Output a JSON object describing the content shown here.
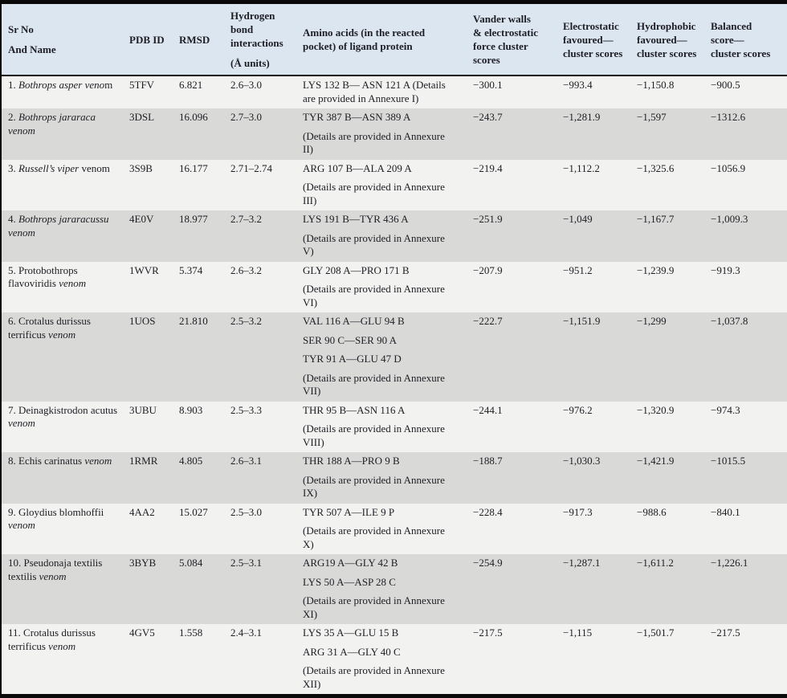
{
  "colors": {
    "header_bg": "#dce6f1",
    "row_light": "#f2f2f1",
    "row_dark": "#d9d9d8",
    "border": "#0a0a0a",
    "text": "#1e1e24"
  },
  "table": {
    "header": [
      {
        "id": "srno-name",
        "paras": [
          "Sr No",
          "And Name"
        ]
      },
      {
        "id": "pdb-id",
        "paras": [
          "PDB ID"
        ]
      },
      {
        "id": "rmsd",
        "paras": [
          "RMSD"
        ]
      },
      {
        "id": "hbond",
        "paras": [
          "Hydrogen\nbond\ninteractions",
          "(Å units)"
        ]
      },
      {
        "id": "amino-acids",
        "paras": [
          "Amino acids (in the reacted\npocket) of ligand protein"
        ]
      },
      {
        "id": "vdw",
        "paras": [
          "Vander walls\n& electrostatic\nforce cluster\nscores"
        ]
      },
      {
        "id": "electrostatic",
        "paras": [
          "Electrostatic\nfavoured—\ncluster scores"
        ]
      },
      {
        "id": "hydrophobic",
        "paras": [
          "Hydrophobic\nfavoured—\ncluster scores"
        ]
      },
      {
        "id": "balanced",
        "paras": [
          "Balanced\nscore—\ncluster scores"
        ]
      }
    ],
    "rows": [
      {
        "name": [
          {
            "t": "1. ",
            "i": false
          },
          {
            "t": "Bothrops asper veno",
            "i": true
          },
          {
            "t": "m",
            "i": false
          }
        ],
        "pdb": "5TFV",
        "rmsd": "6.821",
        "hbond": "2.6–3.0",
        "amino": [
          "LYS 132 B— ASN 121 A (Details\nare provided in Annexure I)"
        ],
        "vdw": "−300.1",
        "electro": "−993.4",
        "hydro": "−1,150.8",
        "balanced": "−900.5"
      },
      {
        "name": [
          {
            "t": "2. ",
            "i": false
          },
          {
            "t": "Bothrops jararaca\nvenom",
            "i": true
          }
        ],
        "pdb": "3DSL",
        "rmsd": "16.096",
        "hbond": "2.7–3.0",
        "amino": [
          "TYR 387 B—ASN 389 A",
          "(Details are provided in Annexure\nII)"
        ],
        "vdw": "−243.7",
        "electro": "−1,281.9",
        "hydro": "−1,597",
        "balanced": "−1312.6"
      },
      {
        "name": [
          {
            "t": "3. ",
            "i": false
          },
          {
            "t": "Russell’s viper",
            "i": true
          },
          {
            "t": " venom",
            "i": false
          }
        ],
        "pdb": "3S9B",
        "rmsd": "16.177",
        "hbond": "2.71–2.74",
        "amino": [
          "ARG 107 B—ALA 209 A",
          "(Details are provided in Annexure\nIII)"
        ],
        "vdw": "−219.4",
        "electro": "−1,112.2",
        "hydro": "−1,325.6",
        "balanced": "−1056.9"
      },
      {
        "name": [
          {
            "t": "4. ",
            "i": false
          },
          {
            "t": "Bothrops jararacussu\nvenom",
            "i": true
          }
        ],
        "pdb": "4E0V",
        "rmsd": "18.977",
        "hbond": "2.7–3.2",
        "amino": [
          "LYS 191 B—TYR 436 A",
          "(Details are provided in Annexure\nV)"
        ],
        "vdw": "−251.9",
        "electro": "−1,049",
        "hydro": "−1,167.7",
        "balanced": "−1,009.3"
      },
      {
        "name": [
          {
            "t": "5. Protobothrops\nflavoviridis ",
            "i": false
          },
          {
            "t": "venom",
            "i": true
          }
        ],
        "pdb": "1WVR",
        "rmsd": "5.374",
        "hbond": "2.6–3.2",
        "amino": [
          "GLY 208 A—PRO 171 B",
          "(Details are provided in Annexure\nVI)"
        ],
        "vdw": "−207.9",
        "electro": "−951.2",
        "hydro": "−1,239.9",
        "balanced": "−919.3"
      },
      {
        "name": [
          {
            "t": "6. Crotalus durissus\nterrificus ",
            "i": false
          },
          {
            "t": "venom",
            "i": true
          }
        ],
        "pdb": "1UOS",
        "rmsd": "21.810",
        "hbond": "2.5–3.2",
        "amino": [
          "VAL 116 A—GLU 94 B",
          "SER 90 C—SER 90 A",
          "TYR 91 A—GLU 47 D",
          "(Details are provided in Annexure\nVII)"
        ],
        "vdw": "−222.7",
        "electro": "−1,151.9",
        "hydro": "−1,299",
        "balanced": "−1,037.8"
      },
      {
        "name": [
          {
            "t": "7. Deinagkistrodon acutus\n",
            "i": false
          },
          {
            "t": "venom",
            "i": true
          }
        ],
        "pdb": "3UBU",
        "rmsd": "8.903",
        "hbond": "2.5–3.3",
        "amino": [
          "THR 95 B—ASN 116 A",
          "(Details are provided in Annexure\nVIII)"
        ],
        "vdw": "−244.1",
        "electro": "−976.2",
        "hydro": "−1,320.9",
        "balanced": "−974.3"
      },
      {
        "name": [
          {
            "t": "8. Echis carinatus ",
            "i": false
          },
          {
            "t": "venom",
            "i": true
          }
        ],
        "pdb": "1RMR",
        "rmsd": "4.805",
        "hbond": "2.6–3.1",
        "amino": [
          "THR 188 A—PRO 9 B",
          "(Details are provided in Annexure\nIX)"
        ],
        "vdw": "−188.7",
        "electro": "−1,030.3",
        "hydro": "−1,421.9",
        "balanced": "−1015.5"
      },
      {
        "name": [
          {
            "t": "9. Gloydius blomhoffii\n",
            "i": false
          },
          {
            "t": "venom",
            "i": true
          }
        ],
        "pdb": "4AA2",
        "rmsd": "15.027",
        "hbond": "2.5–3.0",
        "amino": [
          "TYR 507 A—ILE 9 P",
          "(Details are provided in Annexure\nX)"
        ],
        "vdw": "−228.4",
        "electro": "−917.3",
        "hydro": "−988.6",
        "balanced": "−840.1"
      },
      {
        "name": [
          {
            "t": "10. Pseudonaja textilis\ntextilis ",
            "i": false
          },
          {
            "t": "venom",
            "i": true
          }
        ],
        "pdb": "3BYB",
        "rmsd": "5.084",
        "hbond": "2.5–3.1",
        "amino": [
          "ARG19 A—GLY 42 B",
          "LYS 50 A—ASP 28 C",
          "(Details are provided in Annexure\nXI)"
        ],
        "vdw": "−254.9",
        "electro": "−1,287.1",
        "hydro": "−1,611.2",
        "balanced": "−1,226.1"
      },
      {
        "name": [
          {
            "t": "11. Crotalus durissus\nterrificus ",
            "i": false
          },
          {
            "t": "venom",
            "i": true
          }
        ],
        "pdb": "4GV5",
        "rmsd": "1.558",
        "hbond": "2.4–3.1",
        "amino": [
          "LYS 35 A—GLU 15 B",
          "ARG 31 A—GLY 40 C",
          "(Details are provided in Annexure\nXII)"
        ],
        "vdw": "−217.5",
        "electro": "−1,115",
        "hydro": "−1,501.7",
        "balanced": "−217.5"
      }
    ]
  }
}
